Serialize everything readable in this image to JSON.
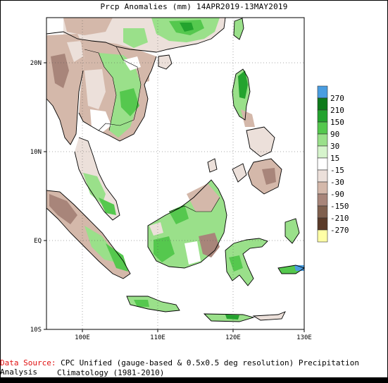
{
  "title": "Prcp Anomalies (mm) 14APR2019-13MAY2019",
  "lat_labels": [
    "20N",
    "10N",
    "EQ",
    "10S"
  ],
  "lon_labels": [
    "100E",
    "110E",
    "120E",
    "130E"
  ],
  "legend": {
    "labels": [
      "270",
      "210",
      "150",
      "90",
      "30",
      "15",
      "-15",
      "-30",
      "-90",
      "-150",
      "-210",
      "-270"
    ],
    "colors": [
      "#4a9de0",
      "#0d7a1a",
      "#23a32e",
      "#55c84e",
      "#9ae08a",
      "#d6f4cc",
      "#ffffff",
      "#ece0da",
      "#d4b8aa",
      "#a8857a",
      "#80604e",
      "#5a3a28",
      "#ffffa6"
    ]
  },
  "footer": {
    "source_label": "Data Source:",
    "source_text": "CPC Unified (gauge-based & 0.5x0.5 deg resolution) Precipitation Analysis",
    "climatology": "Climatology (1981-2010)"
  }
}
